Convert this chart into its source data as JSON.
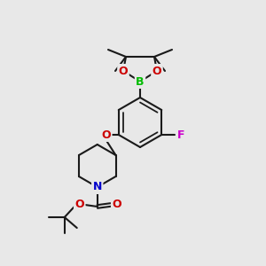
{
  "bg_color": "#e8e8e8",
  "bond_color": "#1a1a1a",
  "bond_width": 1.5,
  "font_size_label": 9,
  "atom_colors": {
    "B": "#00bb00",
    "O": "#cc0000",
    "N": "#0000cc",
    "F": "#cc00cc"
  }
}
